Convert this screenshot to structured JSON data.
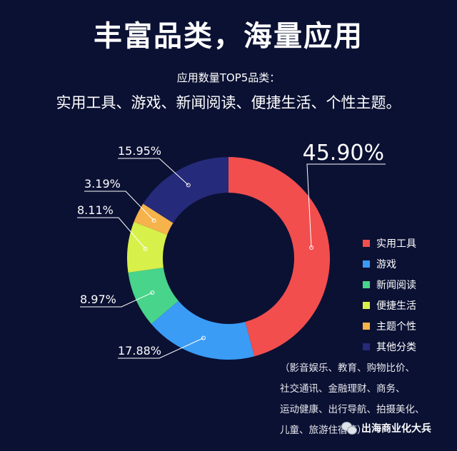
{
  "header": {
    "title": "丰富品类，海量应用",
    "subtitle": "应用数量TOP5品类：",
    "subtitle2": "实用工具、游戏、新闻阅读、便捷生活、个性主题。"
  },
  "chart_data": {
    "type": "pie",
    "donut": true,
    "title": "",
    "categories": [
      "实用工具",
      "游戏",
      "新闻阅读",
      "便捷生活",
      "主题个性",
      "其他分类"
    ],
    "values": [
      45.9,
      17.88,
      8.97,
      8.11,
      3.19,
      15.95
    ],
    "labels": [
      "45.90%",
      "17.88%",
      "8.97%",
      "8.11%",
      "3.19%",
      "15.95%"
    ],
    "colors": [
      "#f24e4e",
      "#3a9cf5",
      "#48d48a",
      "#d7f04a",
      "#f6b24b",
      "#252a7a"
    ],
    "legend_position": "right",
    "start_angle": "12 o'clock",
    "direction": "clockwise"
  },
  "note": {
    "lines": [
      "（影音娱乐、教育、购物比价、",
      "社交通讯、金融理财、商务、",
      "运动健康、出行导航、拍摄美化、",
      "儿童、旅游住宿等）"
    ]
  },
  "watermark": {
    "text": "出海商业化大兵",
    "icon": "wechat-icon"
  }
}
